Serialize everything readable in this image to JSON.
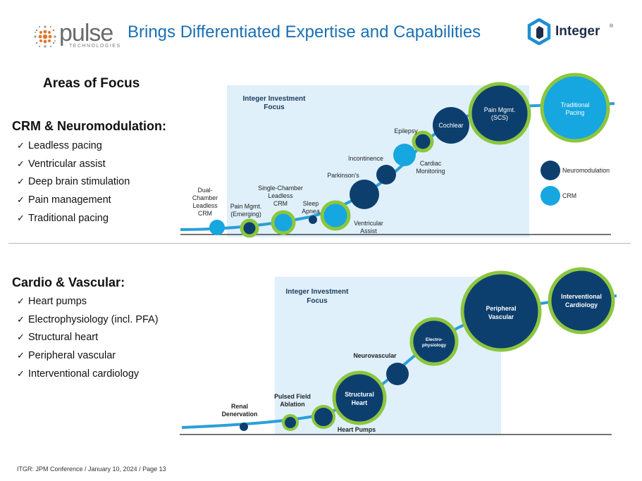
{
  "header": {
    "pulse_logo_word": "pulse",
    "pulse_logo_sub": "TECHNOLOGIES",
    "title": "Brings Differentiated Expertise and Capabilities",
    "integer_logo_word": "Integer",
    "integer_logo_mark": "®"
  },
  "areas_title": "Areas of Focus",
  "sections": [
    {
      "heading": "CRM & Neuromodulation:",
      "items": [
        "Leadless pacing",
        "Ventricular assist",
        "Deep brain stimulation",
        "Pain management",
        "Traditional pacing"
      ]
    },
    {
      "heading": "Cardio & Vascular:",
      "items": [
        "Heart pumps",
        "Electrophysiology (incl. PFA)",
        "Structural heart",
        "Peripheral vascular",
        "Interventional  cardiology"
      ]
    }
  ],
  "check_glyph": "✓",
  "diagram1": {
    "box_title": [
      "Integer Investment",
      "Focus"
    ],
    "labels": {
      "dual": [
        "Dual-",
        "Chamber",
        "Leadless",
        "CRM"
      ],
      "painEm": [
        "Pain Mgmt.",
        "(Emerging)"
      ],
      "single": [
        "Single-Chamber",
        "Leadless",
        "CRM"
      ],
      "sleep": [
        "Sleep",
        "Apnea"
      ],
      "vent": [
        "Ventricular",
        "Assist"
      ],
      "parkinsons": [
        "Parkinson's"
      ],
      "incontinence": [
        "Incontinence"
      ],
      "epilepsy": [
        "Epilepsy"
      ],
      "cardiac": [
        "Cardiac",
        "Monitoring"
      ],
      "cochlear": [
        "Cochlear"
      ],
      "painSCS": [
        "Pain Mgmt.",
        "(SCS)"
      ],
      "tradPacing": [
        "Traditional",
        "Pacing"
      ]
    },
    "legend": [
      "Neuromodulation",
      "CRM"
    ]
  },
  "diagram2": {
    "box_title": [
      "Integer Investment",
      "Focus"
    ],
    "labels": {
      "renal": [
        "Renal",
        "Denervation"
      ],
      "pfa": [
        "Pulsed  Field",
        "Ablation"
      ],
      "heartPumps": [
        "Heart Pumps"
      ],
      "structural": [
        "Structural",
        "Heart"
      ],
      "neuro": [
        "Neurovascular"
      ],
      "electro": [
        "Electro-",
        "physiology"
      ],
      "peripheral": [
        "Peripheral",
        "Vascular"
      ],
      "interventional": [
        "Interventional",
        "Cardiology"
      ]
    }
  },
  "footer": "ITGR: JPM Conference / January 10, 2024 / Page 13",
  "colors": {
    "navy": "#0d3f6e",
    "cyan": "#16a6e0",
    "green": "#8cc63e",
    "box": "#dff0fb",
    "title_blue": "#1a6fb3"
  }
}
